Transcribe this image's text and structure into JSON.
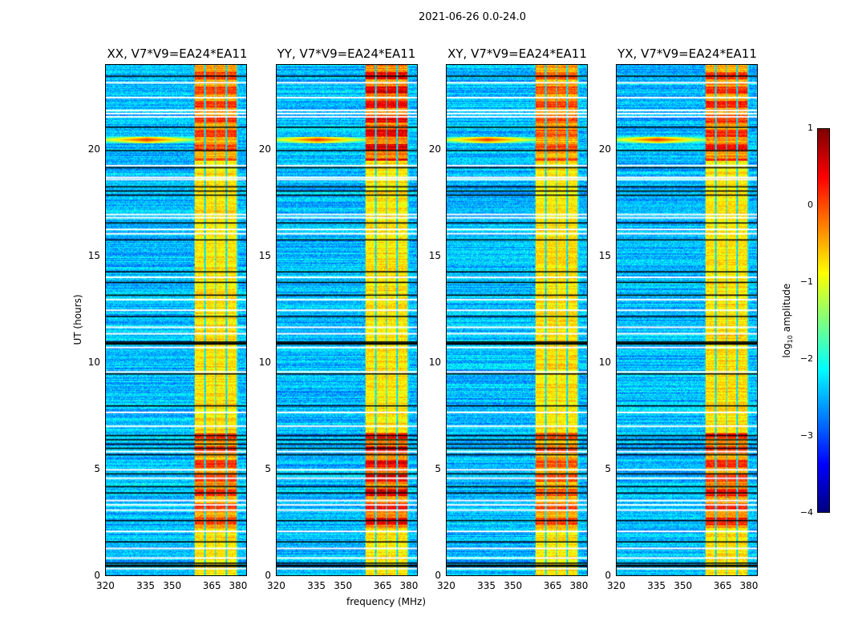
{
  "chart_data": {
    "type": "heatmap",
    "title": "2021-06-26 0.0-24.0",
    "xlabel": "frequency (MHz)",
    "ylabel": "UT (hours)",
    "xlim": [
      320,
      384
    ],
    "ylim": [
      0,
      24
    ],
    "x_ticks": [
      "320",
      "335",
      "350",
      "365",
      "380"
    ],
    "y_ticks": [
      "0",
      "5",
      "10",
      "15",
      "20"
    ],
    "panels": [
      {
        "title": "XX, V7*V9=EA24*EA11",
        "band_strength": 0.55
      },
      {
        "title": "YY, V7*V9=EA24*EA11",
        "band_strength": 0.8
      },
      {
        "title": "XY, V7*V9=EA24*EA11",
        "band_strength": 0.5
      },
      {
        "title": "YX, V7*V9=EA24*EA11",
        "band_strength": 0.65
      }
    ],
    "colorbar": {
      "label": "log10 amplitude",
      "label_base": "log",
      "label_sub": "10",
      "label_rest": " amplitude",
      "range": [
        -4,
        1
      ],
      "ticks": [
        "1",
        "0",
        "−1",
        "−2",
        "−3",
        "−4"
      ],
      "colormap": "jet"
    },
    "rfi_source": {
      "freq_mhz": 338,
      "ut_hours": 20.5
    },
    "flagged_white_ut": [
      23.2,
      22.5,
      21.9,
      21.75,
      21.6,
      19.3,
      18.75,
      18.65,
      17.0,
      16.85,
      16.3,
      16.1,
      14.05,
      13.0,
      12.5,
      11.7,
      11.4,
      10.75,
      9.6,
      7.7,
      7.05,
      5.85,
      5.0,
      4.6,
      3.55,
      3.35,
      3.1,
      2.1,
      1.3,
      0.85,
      0.35
    ],
    "flagged_black_ut": [
      23.5,
      21.1,
      20.0,
      19.2,
      18.3,
      18.1,
      17.9,
      16.6,
      15.8,
      14.3,
      13.8,
      13.2,
      12.2,
      11.0,
      10.95,
      10.9,
      9.5,
      8.0,
      6.6,
      6.4,
      6.2,
      6.0,
      5.7,
      4.8,
      4.2,
      3.9,
      2.6,
      1.6,
      0.6,
      0.5,
      0.45
    ]
  }
}
